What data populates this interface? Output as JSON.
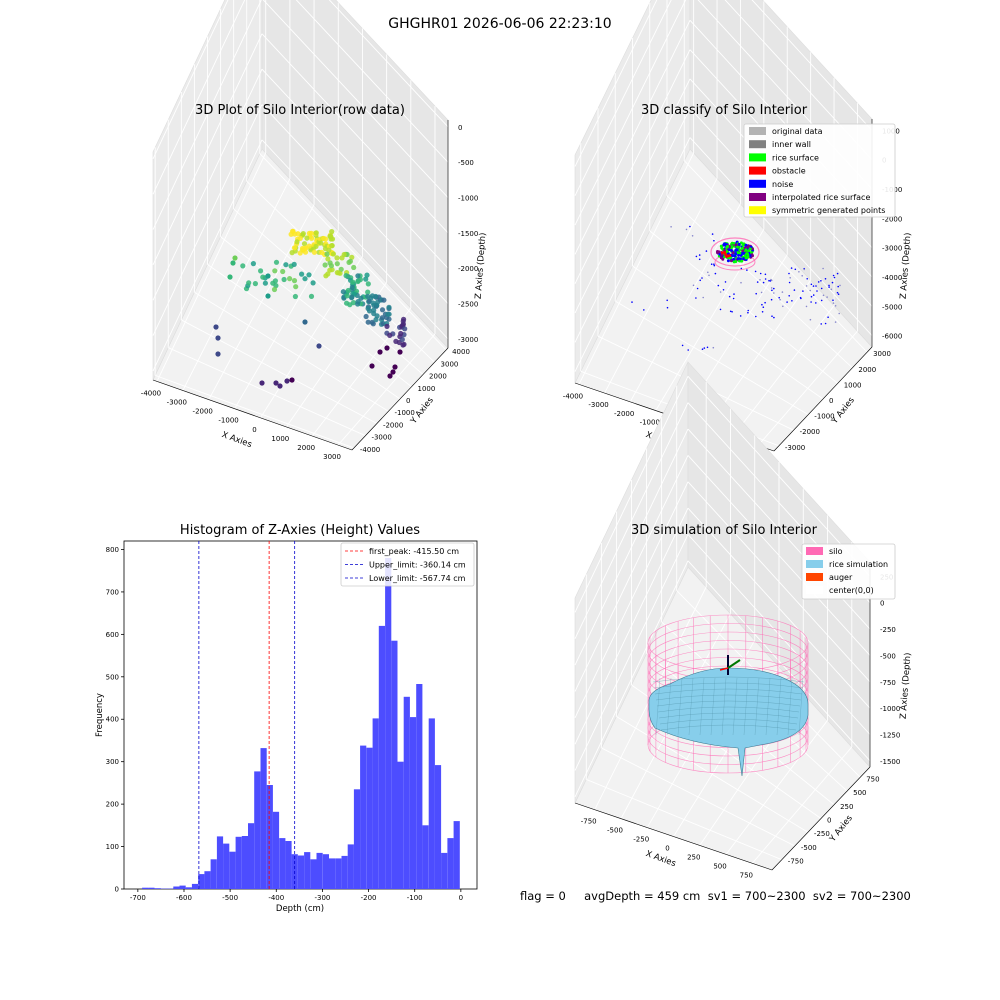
{
  "suptitle": "GHGHR01 2026-06-06 22:23:10",
  "status_text": "flag = 0     avgDepth = 459 cm  sv1 = 700~2300  sv2 = 700~2300",
  "colors": {
    "histogram_bar": "#4d4dff",
    "first_peak_line": "#ff0000",
    "limit_line": "#0000cc",
    "silo": "#ff69b4",
    "rice_simulation": "#87ceeb",
    "auger": "#ff4500",
    "original_data": "#b3b3b3",
    "inner_wall": "#808080",
    "rice_surface": "#00ff00",
    "obstacle": "#ff0000",
    "noise": "#0000ff",
    "interpolated_rice_surface": "#800080",
    "symmetric_generated_points": "#ffff00"
  },
  "panels": {
    "raw": {
      "title": "3D Plot of Silo Interior(row data)",
      "xlabel": "X Axies",
      "ylabel": "Y Axies",
      "zlabel": "Z Axies (Depth)",
      "x_ticks": [
        "-4000",
        "-3000",
        "-2000",
        "-1000",
        "0",
        "1000",
        "2000",
        "3000"
      ],
      "y_ticks": [
        "-4000",
        "-3000",
        "-2000",
        "-1000",
        "0",
        "1000",
        "2000",
        "3000",
        "4000"
      ],
      "z_ticks": [
        "-3000",
        "-2500",
        "-2000",
        "-1500",
        "-1000",
        "-500",
        "0"
      ]
    },
    "classify": {
      "title": "3D classify of Silo Interior",
      "xlabel": "X Axies",
      "ylabel": "Y Axies",
      "zlabel": "Z Axies (Depth)",
      "x_ticks": [
        "-4000",
        "-3000",
        "-2000",
        "-1000",
        "0",
        "1000",
        "2000",
        "3000"
      ],
      "y_ticks": [
        "-3000",
        "-2000",
        "-1000",
        "0",
        "1000",
        "2000",
        "3000"
      ],
      "z_ticks": [
        "-6000",
        "-5000",
        "-4000",
        "-3000",
        "-2000",
        "-1000",
        "0",
        "1000"
      ],
      "legend": [
        {
          "label": "original data",
          "color": "#b3b3b3"
        },
        {
          "label": "inner wall",
          "color": "#808080"
        },
        {
          "label": "rice surface",
          "color": "#00ff00"
        },
        {
          "label": "obstacle",
          "color": "#ff0000"
        },
        {
          "label": "noise",
          "color": "#0000ff"
        },
        {
          "label": "interpolated rice surface",
          "color": "#800080"
        },
        {
          "label": "symmetric generated points",
          "color": "#ffff00"
        }
      ]
    },
    "histogram": {
      "title": "Histogram of Z-Axies (Height) Values",
      "xlabel": "Depth (cm)",
      "ylabel": "Frequency",
      "legend": [
        {
          "label": "first_peak: -415.50 cm",
          "color": "#ff0000"
        },
        {
          "label": "Upper_limit: -360.14 cm",
          "color": "#0000cc"
        },
        {
          "label": "Lower_limit: -567.74 cm",
          "color": "#0000cc"
        }
      ]
    },
    "simulation": {
      "title": "3D simulation of Silo Interior",
      "xlabel": "X Axies",
      "ylabel": "Y Axies",
      "zlabel": "Z Axies (Depth)",
      "x_ticks": [
        "-750",
        "-500",
        "-250",
        "0",
        "250",
        "500",
        "750"
      ],
      "y_ticks": [
        "-750",
        "-500",
        "-250",
        "0",
        "250",
        "500",
        "750"
      ],
      "z_ticks": [
        "-1500",
        "-1250",
        "-1000",
        "-750",
        "-500",
        "-250",
        "0",
        "250"
      ],
      "legend": [
        {
          "label": "silo",
          "color": "#ff69b4"
        },
        {
          "label": "rice simulation",
          "color": "#87ceeb"
        },
        {
          "label": "auger",
          "color": "#ff4500"
        },
        {
          "label": "center(0,0)",
          "color": "#ffffff"
        }
      ]
    }
  },
  "chart_data": [
    {
      "type": "bar",
      "title": "Histogram of Z-Axies (Height) Values",
      "xlabel": "Depth (cm)",
      "ylabel": "Frequency",
      "xlim": [
        -730,
        35
      ],
      "ylim": [
        0,
        820
      ],
      "x_ticks": [
        -700,
        -600,
        -500,
        -400,
        -300,
        -200,
        -100,
        0
      ],
      "y_ticks": [
        0,
        100,
        200,
        300,
        400,
        500,
        600,
        700,
        800
      ],
      "bin_width": 13.5,
      "bins": [
        [
          -684,
          3
        ],
        [
          -670.5,
          3
        ],
        [
          -657,
          2
        ],
        [
          -643.5,
          1
        ],
        [
          -630,
          1
        ],
        [
          -616.5,
          6
        ],
        [
          -603,
          8
        ],
        [
          -589.5,
          4
        ],
        [
          -576,
          12
        ],
        [
          -562.5,
          35
        ],
        [
          -549,
          42
        ],
        [
          -535.5,
          70
        ],
        [
          -522,
          124
        ],
        [
          -508.5,
          107
        ],
        [
          -495,
          88
        ],
        [
          -481.5,
          123
        ],
        [
          -468,
          125
        ],
        [
          -454.5,
          155
        ],
        [
          -441,
          277
        ],
        [
          -427.5,
          332
        ],
        [
          -414,
          245
        ],
        [
          -400.5,
          182
        ],
        [
          -387,
          120
        ],
        [
          -373.5,
          113
        ],
        [
          -360,
          82
        ],
        [
          -346.5,
          79
        ],
        [
          -333,
          87
        ],
        [
          -319.5,
          70
        ],
        [
          -306,
          85
        ],
        [
          -292.5,
          82
        ],
        [
          -279,
          72
        ],
        [
          -265.5,
          72
        ],
        [
          -252,
          78
        ],
        [
          -238.5,
          105
        ],
        [
          -225,
          235
        ],
        [
          -211.5,
          338
        ],
        [
          -198,
          333
        ],
        [
          -184.5,
          402
        ],
        [
          -171,
          620
        ],
        [
          -157.5,
          780
        ],
        [
          -144,
          585
        ],
        [
          -130.5,
          300
        ],
        [
          -117,
          453
        ],
        [
          -103.5,
          405
        ],
        [
          -90,
          483
        ],
        [
          -76.5,
          150
        ],
        [
          -63,
          402
        ],
        [
          -49.5,
          292
        ],
        [
          -36,
          85
        ],
        [
          -22.5,
          120
        ],
        [
          -9,
          160
        ]
      ],
      "vlines": [
        {
          "label": "first_peak: -415.50 cm",
          "x": -415.5,
          "color": "#ff0000"
        },
        {
          "label": "Upper_limit: -360.14 cm",
          "x": -360.14,
          "color": "#0000cc"
        },
        {
          "label": "Lower_limit: -567.74 cm",
          "x": -567.74,
          "color": "#0000cc"
        }
      ],
      "legend_position": "top-right"
    }
  ]
}
